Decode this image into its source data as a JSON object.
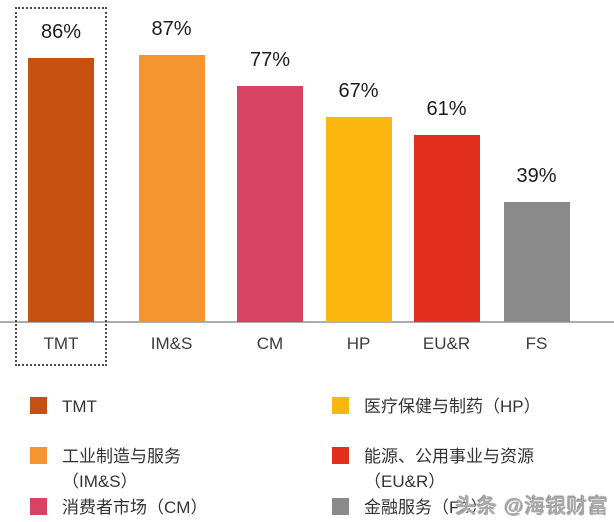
{
  "chart_data": {
    "type": "bar",
    "title": "",
    "categories": [
      "TMT",
      "IM&S",
      "CM",
      "HP",
      "EU&R",
      "FS"
    ],
    "values": [
      86,
      87,
      77,
      67,
      61,
      39
    ],
    "value_labels": [
      "86%",
      "87%",
      "77%",
      "67%",
      "61%",
      "39%"
    ],
    "colors": [
      "#C5500F",
      "#F5952F",
      "#D84362",
      "#FBB60F",
      "#E2301D",
      "#8A8A8A"
    ],
    "highlighted_category": "TMT",
    "xlabel": "",
    "ylabel": "",
    "ylim": [
      0,
      100
    ],
    "grid": false,
    "legend_position": "bottom"
  },
  "legend": {
    "columns": [
      {
        "items": [
          {
            "color": "#C5500F",
            "lines": [
              "TMT"
            ]
          },
          {
            "color": "#F5952F",
            "lines": [
              "工业制造与服务",
              "（IM&S）"
            ]
          },
          {
            "color": "#D84362",
            "lines": [
              "消费者市场（CM）"
            ]
          }
        ]
      },
      {
        "items": [
          {
            "color": "#FBB60F",
            "lines": [
              "医疗保健与制药（HP）"
            ]
          },
          {
            "color": "#E2301D",
            "lines": [
              "能源、公用事业与资源",
              "（EU&R）"
            ]
          },
          {
            "color": "#8A8A8A",
            "lines": [
              "金融服务（FS）"
            ]
          }
        ]
      }
    ]
  },
  "watermark": {
    "text": "头条 @海银财富"
  }
}
